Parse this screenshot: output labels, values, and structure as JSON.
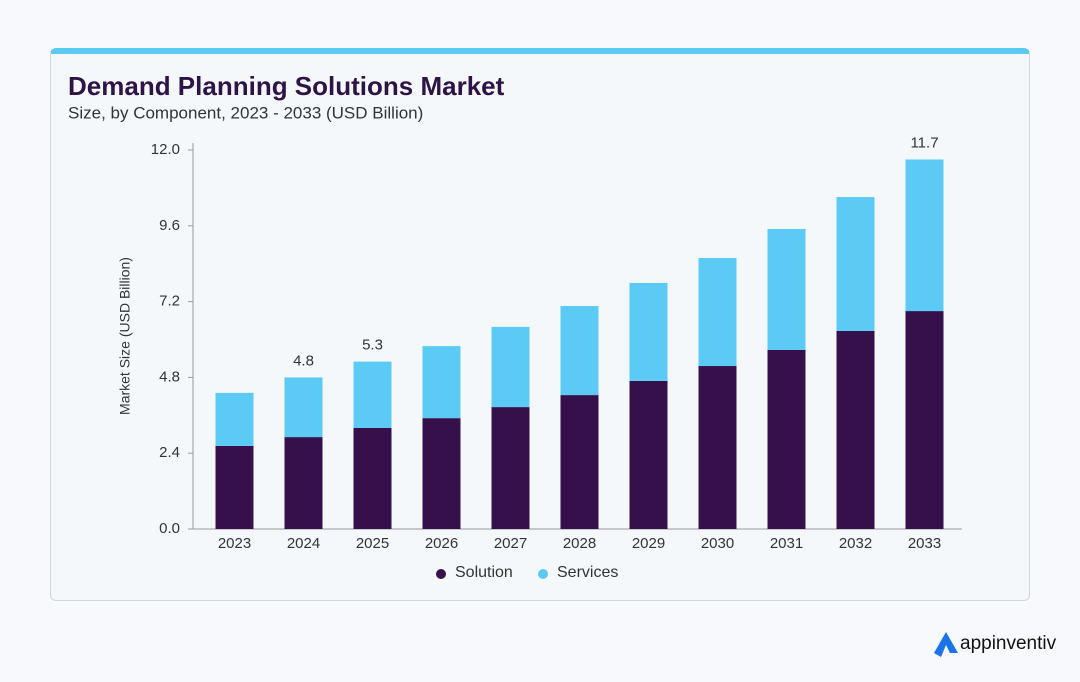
{
  "chart_data": {
    "type": "stacked_bar",
    "title": "Demand Planning Solutions Market",
    "subtitle": "Size, by Component, 2023 - 2033 (USD Billion)",
    "y_label": "Market Size (USD Billion)",
    "categories": [
      "2023",
      "2024",
      "2025",
      "2026",
      "2027",
      "2028",
      "2029",
      "2030",
      "2031",
      "2032",
      "2033"
    ],
    "series": [
      {
        "name": "Solution",
        "color": "#35104a",
        "values": [
          2.63,
          2.91,
          3.2,
          3.51,
          3.86,
          4.24,
          4.69,
          5.16,
          5.67,
          6.27,
          6.9
        ]
      },
      {
        "name": "Services",
        "color": "#5bcaf5",
        "values": [
          1.68,
          1.89,
          2.1,
          2.28,
          2.54,
          2.82,
          3.1,
          3.42,
          3.83,
          4.24,
          4.8
        ]
      }
    ],
    "totals": [
      null,
      4.8,
      5.3,
      null,
      null,
      null,
      null,
      null,
      null,
      null,
      11.7
    ],
    "ylim": [
      0,
      12
    ],
    "yticks": [
      {
        "value": 0,
        "label": "0.0"
      },
      2.4,
      4.8,
      7.2,
      9.6,
      {
        "value": 12,
        "label": "12.0"
      }
    ],
    "grid": false
  },
  "brand": "appinventiv"
}
